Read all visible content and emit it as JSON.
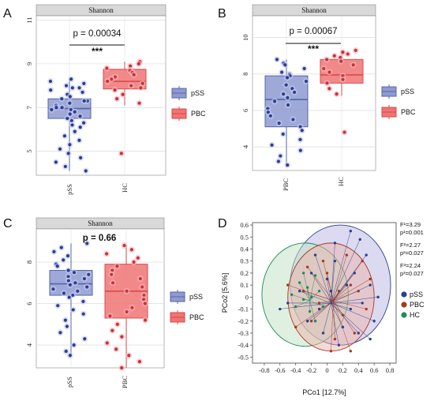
{
  "panels": [
    {
      "letter": "A"
    },
    {
      "letter": "B"
    },
    {
      "letter": "C"
    },
    {
      "letter": "D"
    }
  ],
  "chart_data": [
    {
      "id": "A",
      "type": "box",
      "strip_label": "Shannon",
      "categories": [
        "pSS",
        "HC"
      ],
      "p_value": "p = 0.00034",
      "significance": "***",
      "yticks": [
        5,
        7,
        9,
        11
      ],
      "ylim": [
        3.9,
        11.2
      ],
      "x_label_rotated": true,
      "series": [
        {
          "name": "pSS",
          "color": "#5566aa",
          "box": {
            "q1": 6.5,
            "median": 6.95,
            "q3": 7.4,
            "low": 4.1,
            "high": 8.3
          },
          "points": [
            8.3,
            8.2,
            8.1,
            8.0,
            7.9,
            7.9,
            7.8,
            7.7,
            7.6,
            7.5,
            7.4,
            7.3,
            7.3,
            7.2,
            7.1,
            7.0,
            7.0,
            6.9,
            6.9,
            6.8,
            6.7,
            6.6,
            6.5,
            6.4,
            6.3,
            6.2,
            6.1,
            5.9,
            5.7,
            5.5,
            5.3,
            5.1,
            4.9,
            4.7,
            4.5,
            4.3,
            4.1
          ]
        },
        {
          "name": "HC",
          "color": "#d94a4a",
          "box": {
            "q1": 7.85,
            "median": 8.2,
            "q3": 8.75,
            "low": 7.1,
            "high": 9.1
          },
          "points": [
            9.1,
            9.0,
            8.9,
            8.8,
            8.7,
            8.6,
            8.5,
            8.4,
            8.3,
            8.2,
            8.1,
            8.0,
            7.9,
            7.8,
            7.6,
            7.4,
            7.2,
            4.9
          ]
        }
      ],
      "legend": [
        "pSS",
        "PBC"
      ]
    },
    {
      "id": "B",
      "type": "box",
      "strip_label": "Shannon",
      "categories": [
        "PBC",
        "HC"
      ],
      "p_value": "p = 0.00067",
      "significance": "***",
      "yticks": [
        4,
        6,
        8,
        10
      ],
      "ylim": [
        2.7,
        11.2
      ],
      "x_label_rotated": true,
      "series": [
        {
          "name": "PBC",
          "color": "#5566aa",
          "box": {
            "q1": 5.1,
            "median": 6.6,
            "q3": 7.9,
            "low": 3.0,
            "high": 8.8
          },
          "points": [
            8.8,
            8.6,
            8.5,
            8.3,
            8.1,
            8.0,
            7.9,
            7.8,
            7.6,
            7.4,
            7.2,
            7.0,
            6.9,
            6.7,
            6.5,
            6.3,
            6.1,
            5.9,
            5.7,
            5.5,
            5.3,
            5.1,
            4.9,
            4.7,
            4.4,
            4.1,
            3.8,
            3.5,
            3.2,
            3.0
          ]
        },
        {
          "name": "HC",
          "color": "#d94a4a",
          "box": {
            "q1": 7.5,
            "median": 7.95,
            "q3": 8.8,
            "low": 6.8,
            "high": 9.3
          },
          "points": [
            9.3,
            9.2,
            9.1,
            9.0,
            8.9,
            8.8,
            8.7,
            8.5,
            8.3,
            8.1,
            7.9,
            7.7,
            7.5,
            7.2,
            6.9,
            4.8
          ]
        }
      ],
      "legend": [
        "pSS",
        "PBC"
      ]
    },
    {
      "id": "C",
      "type": "box",
      "strip_label": "Shannon",
      "categories": [
        "pSS",
        "PBC"
      ],
      "p_value": "p = 0.66",
      "yticks": [
        4,
        6,
        8
      ],
      "ylim": [
        2.9,
        9.6
      ],
      "x_label_rotated": true,
      "series": [
        {
          "name": "pSS",
          "color": "#5566aa",
          "box": {
            "q1": 6.4,
            "median": 6.95,
            "q3": 7.6,
            "low": 3.5,
            "high": 8.9
          },
          "points": [
            8.9,
            8.7,
            8.5,
            8.3,
            8.1,
            7.9,
            7.8,
            7.6,
            7.5,
            7.4,
            7.3,
            7.2,
            7.1,
            7.0,
            6.9,
            6.8,
            6.7,
            6.6,
            6.5,
            6.4,
            6.3,
            6.1,
            5.9,
            5.7,
            5.5,
            5.2,
            4.9,
            4.6,
            4.3,
            4.0,
            3.7,
            3.5
          ]
        },
        {
          "name": "PBC",
          "color": "#d94a4a",
          "box": {
            "q1": 5.3,
            "median": 6.6,
            "q3": 7.9,
            "low": 2.9,
            "high": 8.8
          },
          "points": [
            8.8,
            8.6,
            8.4,
            8.2,
            8.0,
            7.8,
            7.6,
            7.4,
            7.2,
            7.0,
            6.8,
            6.6,
            6.4,
            6.2,
            6.0,
            5.8,
            5.6,
            5.4,
            5.2,
            5.0,
            4.7,
            4.4,
            4.1,
            3.8,
            3.5,
            3.2,
            2.9
          ]
        }
      ],
      "legend": [
        "pSS",
        "PBC"
      ]
    },
    {
      "id": "D",
      "type": "scatter",
      "xlabel": "PCo1 [12.7%]",
      "ylabel": "PCo2 [5.6%]",
      "xlim": [
        -0.95,
        0.88
      ],
      "ylim": [
        -0.55,
        0.62
      ],
      "xticks": [
        "-0.8",
        "-0.6",
        "-0.4",
        "-0.2",
        "0",
        "0.2",
        "0.4",
        "0.6",
        "0.8"
      ],
      "yticks": [
        "0.6",
        "0.5",
        "0.4",
        "0.3",
        "0.2",
        "0.1",
        "0",
        "-0.1",
        "-0.2",
        "-0.3",
        "-0.4",
        "-0.5"
      ],
      "stats": [
        {
          "F": "F¹=3.29",
          "p": "p¹=0.001"
        },
        {
          "F": "F²=2.27",
          "p": "p²=0.027"
        },
        {
          "F": "F³=2.24",
          "p": "p³=0.027"
        }
      ],
      "legend": [
        {
          "name": "pSS",
          "color": "#2c3e91"
        },
        {
          "name": "PBC",
          "color": "#a23a22"
        },
        {
          "name": "HC",
          "color": "#1e8a5c"
        }
      ],
      "groups": [
        {
          "name": "pSS",
          "color": "#2c3e91",
          "centroid": [
            0.05,
            -0.05
          ],
          "ellipse": {
            "cx": 0.17,
            "cy": 0.1,
            "rx": 0.64,
            "ry": 0.5,
            "fill": "#b9b6e3"
          },
          "points": [
            [
              0.3,
              0.55
            ],
            [
              0.42,
              0.48
            ],
            [
              0.5,
              0.35
            ],
            [
              0.1,
              0.3
            ],
            [
              -0.2,
              0.2
            ],
            [
              0.55,
              0.1
            ],
            [
              0.6,
              -0.2
            ],
            [
              0.4,
              -0.3
            ],
            [
              0.2,
              -0.25
            ],
            [
              -0.1,
              -0.1
            ],
            [
              -0.35,
              0.05
            ],
            [
              -0.5,
              -0.05
            ],
            [
              0.05,
              0.05
            ],
            [
              0.25,
              0.1
            ],
            [
              0.35,
              0.2
            ],
            [
              -0.05,
              -0.3
            ],
            [
              0.15,
              -0.4
            ],
            [
              0.45,
              -0.05
            ],
            [
              0.65,
              0.0
            ],
            [
              -0.25,
              -0.2
            ],
            [
              0.0,
              0.15
            ],
            [
              0.3,
              -0.1
            ],
            [
              -0.6,
              -0.1
            ],
            [
              0.55,
              -0.35
            ],
            [
              0.1,
              0.45
            ],
            [
              -0.15,
              0.35
            ]
          ]
        },
        {
          "name": "PBC",
          "color": "#a23a22",
          "centroid": [
            0.08,
            -0.03
          ],
          "ellipse": {
            "cx": 0.05,
            "cy": 0.0,
            "rx": 0.55,
            "ry": 0.45,
            "fill": "#ebb3aa"
          },
          "points": [
            [
              0.3,
              0.1
            ],
            [
              0.2,
              -0.15
            ],
            [
              -0.2,
              -0.2
            ],
            [
              -0.3,
              0.05
            ],
            [
              0.45,
              0.3
            ],
            [
              0.1,
              -0.35
            ],
            [
              -0.4,
              -0.25
            ],
            [
              0.35,
              -0.3
            ],
            [
              0.0,
              0.2
            ],
            [
              0.5,
              -0.1
            ],
            [
              -0.1,
              -0.05
            ],
            [
              0.25,
              0.35
            ],
            [
              -0.5,
              0.1
            ],
            [
              0.15,
              0.05
            ],
            [
              0.05,
              -0.45
            ],
            [
              -0.25,
              0.25
            ],
            [
              0.4,
              0.05
            ],
            [
              -0.05,
              0.3
            ],
            [
              0.3,
              -0.45
            ],
            [
              0.55,
              0.15
            ]
          ]
        },
        {
          "name": "HC",
          "color": "#1e8a5c",
          "centroid": [
            -0.22,
            -0.03
          ],
          "ellipse": {
            "cx": -0.28,
            "cy": 0.02,
            "rx": 0.55,
            "ry": 0.43,
            "fill": "#bfe2c2"
          },
          "points": [
            [
              -0.15,
              0.18
            ],
            [
              -0.3,
              -0.02
            ],
            [
              -0.25,
              0.08
            ],
            [
              -0.4,
              -0.08
            ],
            [
              -0.05,
              -0.08
            ],
            [
              -0.2,
              0.0
            ],
            [
              -0.35,
              0.12
            ],
            [
              -0.1,
              0.05
            ],
            [
              -0.45,
              0.02
            ],
            [
              -0.22,
              -0.12
            ],
            [
              -0.15,
              -0.2
            ],
            [
              -0.3,
              0.2
            ]
          ]
        }
      ]
    }
  ]
}
